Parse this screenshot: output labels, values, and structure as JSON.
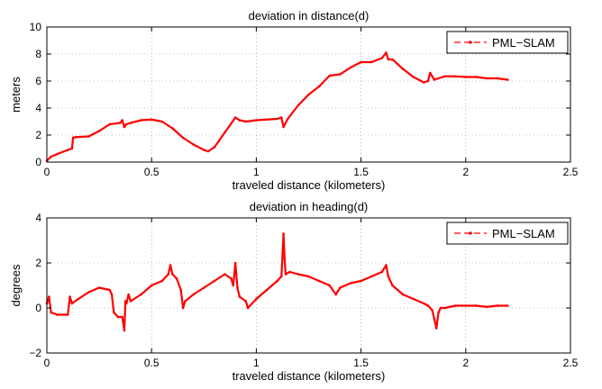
{
  "chart_data": [
    {
      "type": "line",
      "title": "deviation in distance(d)",
      "xlabel": "traveled distance (kilometers)",
      "ylabel": "meters",
      "xlim": [
        0,
        2.5
      ],
      "ylim": [
        0,
        10
      ],
      "xticks": [
        0,
        0.5,
        1,
        1.5,
        2,
        2.5
      ],
      "xtick_labels": [
        "0",
        "0.5",
        "1",
        "1.5",
        "2",
        "2.5"
      ],
      "yticks": [
        0,
        2,
        4,
        6,
        8,
        10
      ],
      "ytick_labels": [
        "0",
        "2",
        "4",
        "6",
        "8",
        "10"
      ],
      "grid": true,
      "legend": "top-right",
      "series": [
        {
          "name": "PML−SLAM",
          "color": "#ff0000",
          "x": [
            0,
            0.02,
            0.05,
            0.1,
            0.12,
            0.125,
            0.14,
            0.2,
            0.25,
            0.3,
            0.35,
            0.36,
            0.37,
            0.38,
            0.4,
            0.45,
            0.5,
            0.55,
            0.6,
            0.65,
            0.7,
            0.75,
            0.77,
            0.8,
            0.85,
            0.9,
            0.92,
            0.95,
            1.0,
            1.05,
            1.1,
            1.12,
            1.13,
            1.15,
            1.2,
            1.25,
            1.3,
            1.35,
            1.4,
            1.45,
            1.5,
            1.55,
            1.6,
            1.62,
            1.63,
            1.65,
            1.7,
            1.75,
            1.8,
            1.82,
            1.83,
            1.85,
            1.9,
            1.95,
            2.0,
            2.05,
            2.1,
            2.15,
            2.2
          ],
          "y": [
            0.1,
            0.4,
            0.6,
            0.9,
            1.0,
            1.8,
            1.85,
            1.9,
            2.3,
            2.8,
            2.9,
            3.1,
            2.6,
            2.8,
            2.9,
            3.1,
            3.15,
            3.0,
            2.5,
            1.8,
            1.3,
            0.9,
            0.8,
            1.1,
            2.2,
            3.3,
            3.1,
            3.0,
            3.1,
            3.15,
            3.2,
            3.3,
            2.6,
            3.2,
            4.2,
            5.0,
            5.6,
            6.4,
            6.5,
            7.0,
            7.4,
            7.4,
            7.7,
            8.1,
            7.6,
            7.6,
            6.9,
            6.3,
            5.9,
            6.0,
            6.6,
            6.1,
            6.35,
            6.35,
            6.3,
            6.3,
            6.2,
            6.2,
            6.1
          ]
        }
      ]
    },
    {
      "type": "line",
      "title": "deviation in heading(d)",
      "xlabel": "traveled distance (kilometers)",
      "ylabel": "degrees",
      "xlim": [
        0,
        2.5
      ],
      "ylim": [
        -2,
        4
      ],
      "xticks": [
        0,
        0.5,
        1,
        1.5,
        2,
        2.5
      ],
      "xtick_labels": [
        "0",
        "0.5",
        "1",
        "1.5",
        "2",
        "2.5"
      ],
      "yticks": [
        -2,
        0,
        2,
        4
      ],
      "ytick_labels": [
        "−2",
        "0",
        "2",
        "4"
      ],
      "grid": true,
      "legend": "top-right",
      "series": [
        {
          "name": "PML−SLAM",
          "color": "#ff0000",
          "x": [
            0,
            0.01,
            0.02,
            0.05,
            0.1,
            0.11,
            0.12,
            0.15,
            0.2,
            0.25,
            0.3,
            0.31,
            0.32,
            0.34,
            0.36,
            0.37,
            0.375,
            0.38,
            0.39,
            0.4,
            0.45,
            0.5,
            0.55,
            0.58,
            0.59,
            0.6,
            0.62,
            0.64,
            0.65,
            0.66,
            0.7,
            0.75,
            0.8,
            0.85,
            0.88,
            0.89,
            0.9,
            0.91,
            0.92,
            0.95,
            0.96,
            1.0,
            1.05,
            1.1,
            1.12,
            1.13,
            1.135,
            1.14,
            1.16,
            1.2,
            1.25,
            1.3,
            1.35,
            1.38,
            1.4,
            1.45,
            1.5,
            1.55,
            1.6,
            1.62,
            1.63,
            1.65,
            1.7,
            1.75,
            1.8,
            1.82,
            1.84,
            1.85,
            1.86,
            1.87,
            1.88,
            1.9,
            1.95,
            2.0,
            2.05,
            2.1,
            2.15,
            2.2
          ],
          "y": [
            0.2,
            0.5,
            -0.2,
            -0.3,
            -0.3,
            0.5,
            0.2,
            0.4,
            0.7,
            0.9,
            0.8,
            0.6,
            -0.2,
            -0.4,
            -0.4,
            -1.0,
            0.3,
            0.2,
            0.6,
            0.3,
            0.6,
            1.0,
            1.2,
            1.5,
            1.9,
            1.5,
            1.3,
            0.8,
            0.0,
            0.3,
            0.6,
            0.9,
            1.2,
            1.5,
            1.3,
            1.0,
            2.0,
            0.9,
            0.5,
            0.3,
            0.0,
            0.4,
            0.8,
            1.2,
            1.4,
            3.3,
            2.2,
            1.5,
            1.6,
            1.5,
            1.4,
            1.2,
            1.0,
            0.6,
            0.9,
            1.1,
            1.2,
            1.4,
            1.6,
            1.9,
            1.4,
            1.0,
            0.6,
            0.4,
            0.2,
            0.1,
            -0.1,
            -0.5,
            -0.9,
            -0.2,
            0.0,
            0.0,
            0.1,
            0.1,
            0.1,
            0.05,
            0.1,
            0.1
          ]
        }
      ]
    }
  ]
}
